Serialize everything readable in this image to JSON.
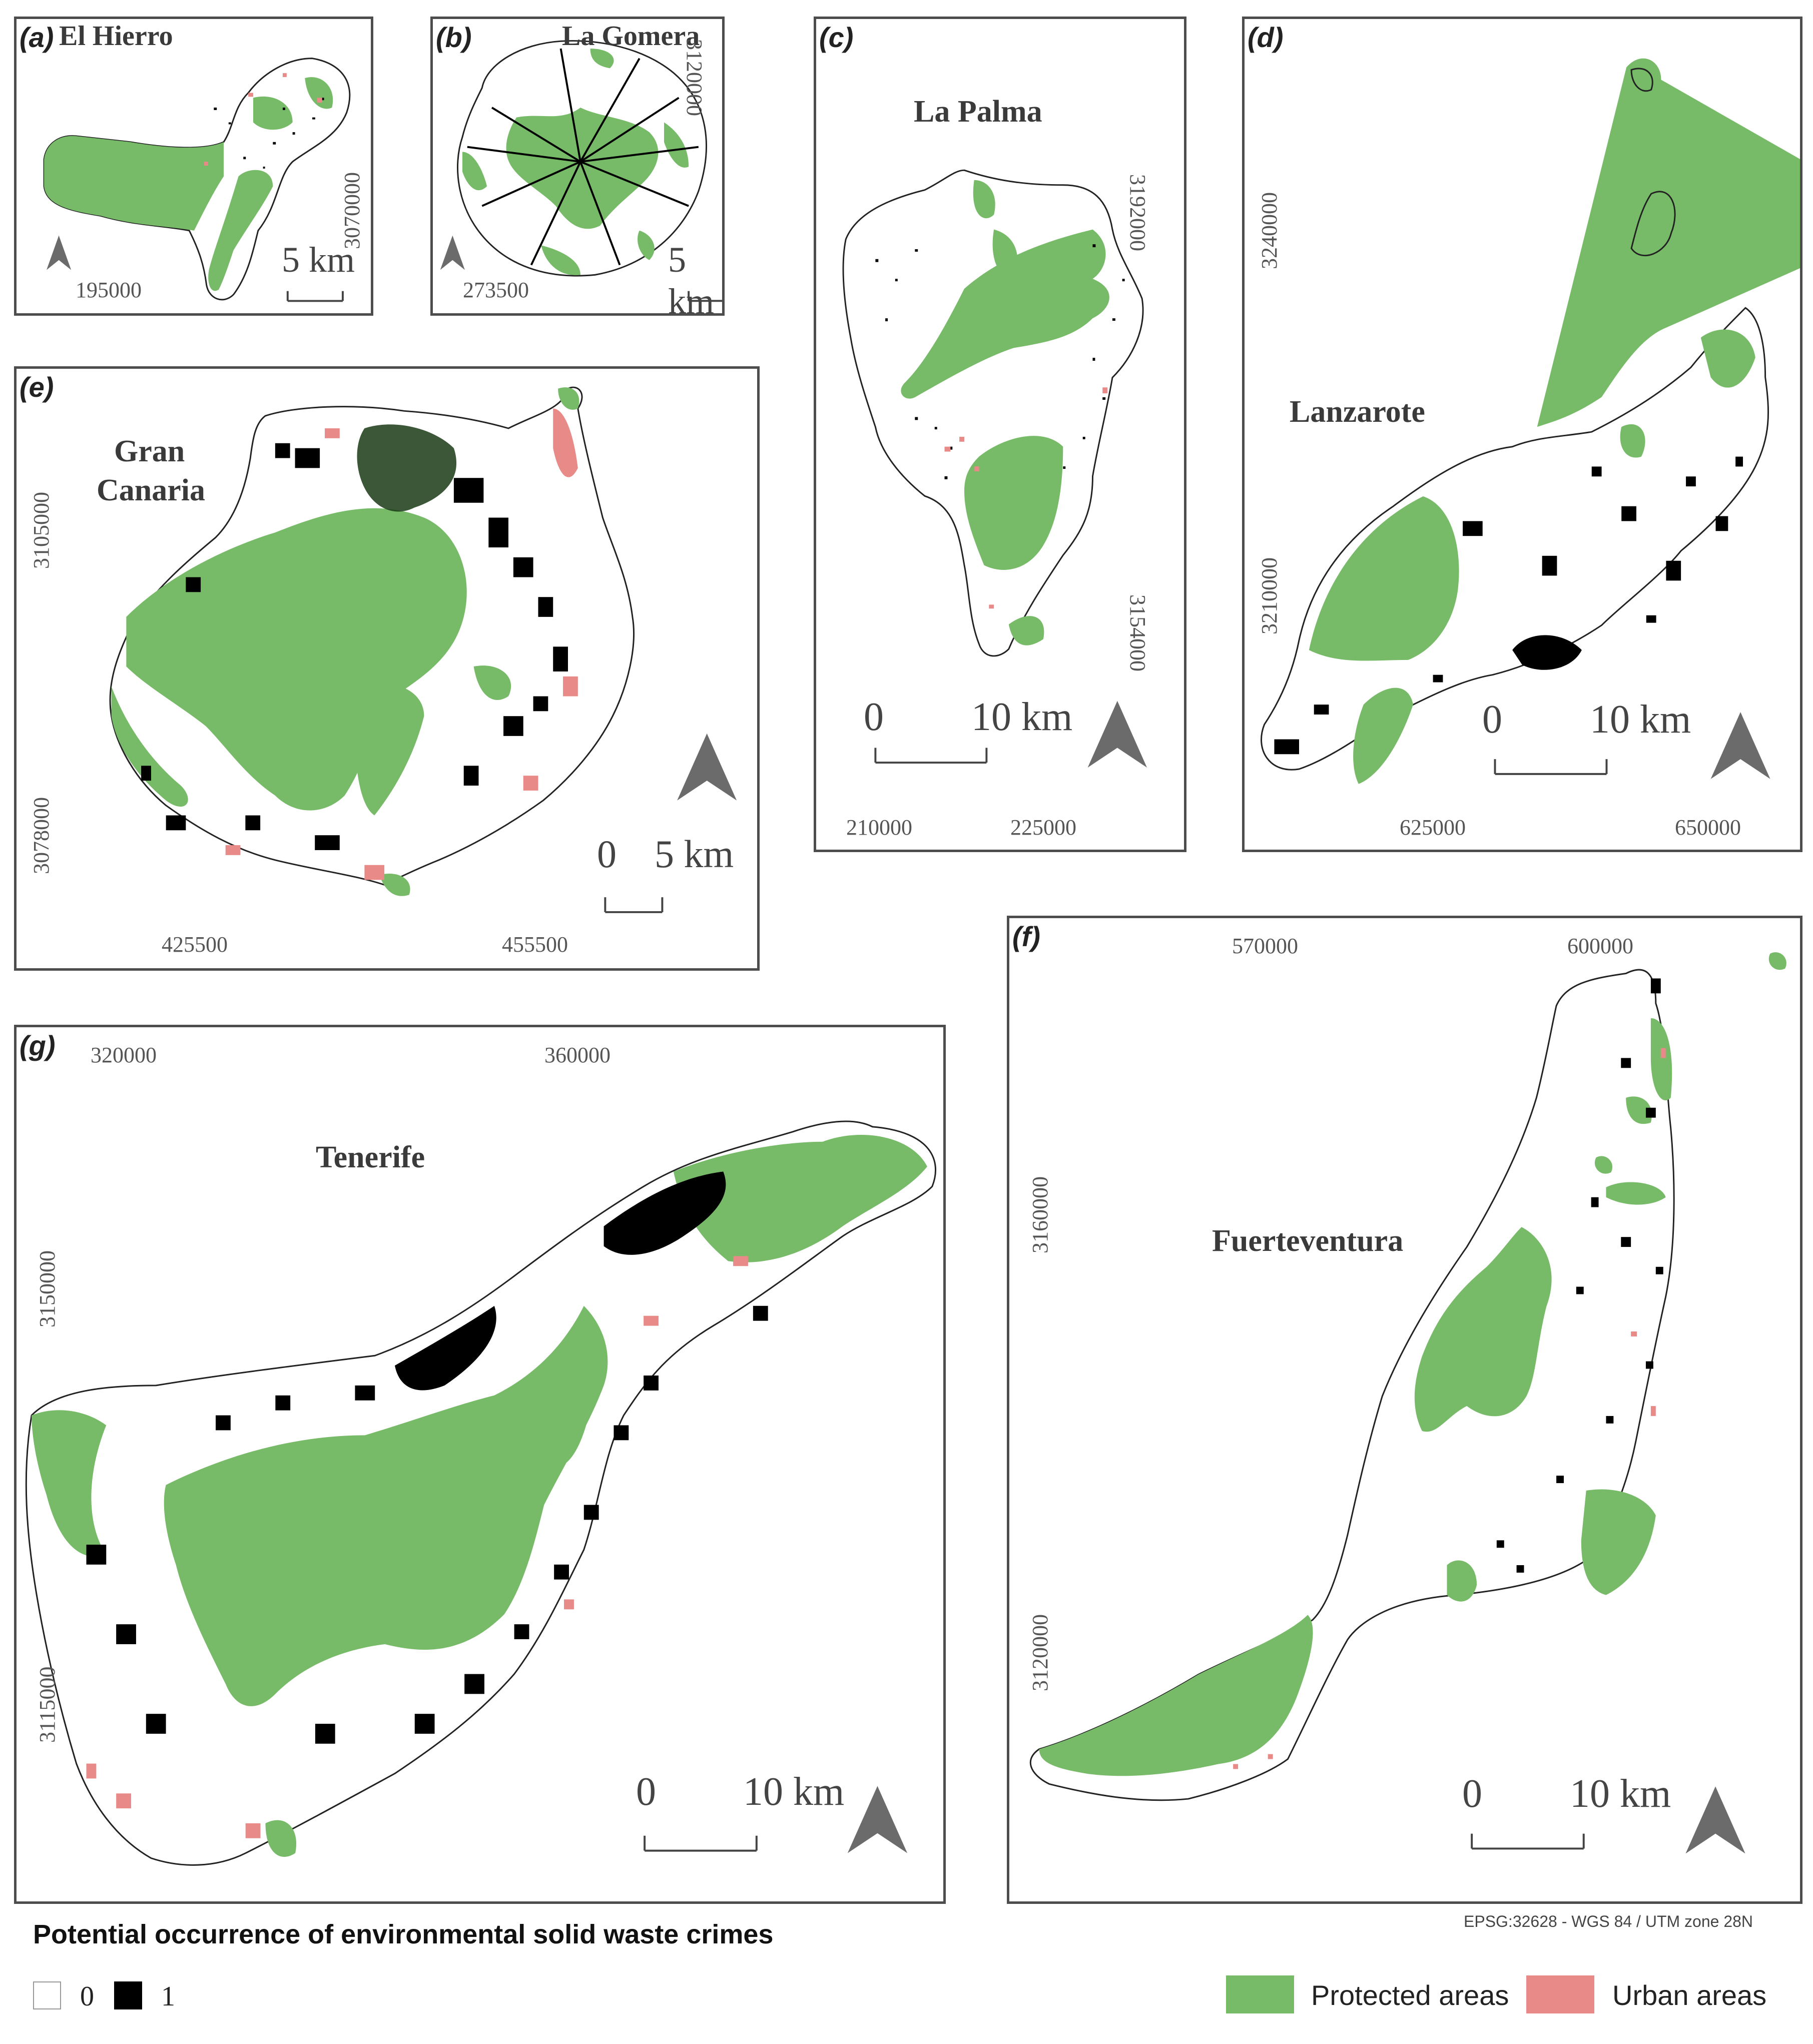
{
  "panels": {
    "a": {
      "label": "(a)",
      "name": "El Hierro",
      "x_tick": "195000",
      "y_tick": "3070000",
      "scale": "5 km"
    },
    "b": {
      "label": "(b)",
      "name": "La Gomera",
      "x_tick": "273500",
      "y_tick": "3120000",
      "scale": "5 km"
    },
    "c": {
      "label": "(c)",
      "name": "La Palma",
      "x_ticks": [
        "210000",
        "225000"
      ],
      "y_ticks": [
        "3192000",
        "3154000"
      ],
      "scale_0": "0",
      "scale": "10 km"
    },
    "d": {
      "label": "(d)",
      "name": "Lanzarote",
      "x_ticks": [
        "625000",
        "650000"
      ],
      "y_ticks": [
        "3240000",
        "3210000"
      ],
      "scale_0": "0",
      "scale": "10 km"
    },
    "e": {
      "label": "(e)",
      "name_line1": "Gran",
      "name_line2": "Canaria",
      "x_ticks": [
        "425500",
        "455500"
      ],
      "y_ticks": [
        "3105000",
        "3078000"
      ],
      "scale_0": "0",
      "scale": "5 km"
    },
    "f": {
      "label": "(f)",
      "name": "Fuerteventura",
      "x_ticks": [
        "570000",
        "600000"
      ],
      "y_ticks": [
        "3160000",
        "3120000"
      ],
      "scale_0": "0",
      "scale": "10 km"
    },
    "g": {
      "label": "(g)",
      "name": "Tenerife",
      "x_ticks": [
        "320000",
        "360000"
      ],
      "y_ticks": [
        "3150000",
        "3115000"
      ],
      "scale_0": "0",
      "scale": "10 km"
    }
  },
  "legend": {
    "title": "Potential occurrence of environmental solid waste crimes",
    "class_0": "0",
    "class_1": "1",
    "protected": "Protected areas",
    "urban": "Urban areas"
  },
  "crs": "EPSG:32628 - WGS 84 / UTM zone 28N",
  "colors": {
    "protected": "#77bb69",
    "urban": "#e88a87",
    "crime": "#000000",
    "frame": "#4d4d4d",
    "north_arrow": "#6b6b6b"
  }
}
